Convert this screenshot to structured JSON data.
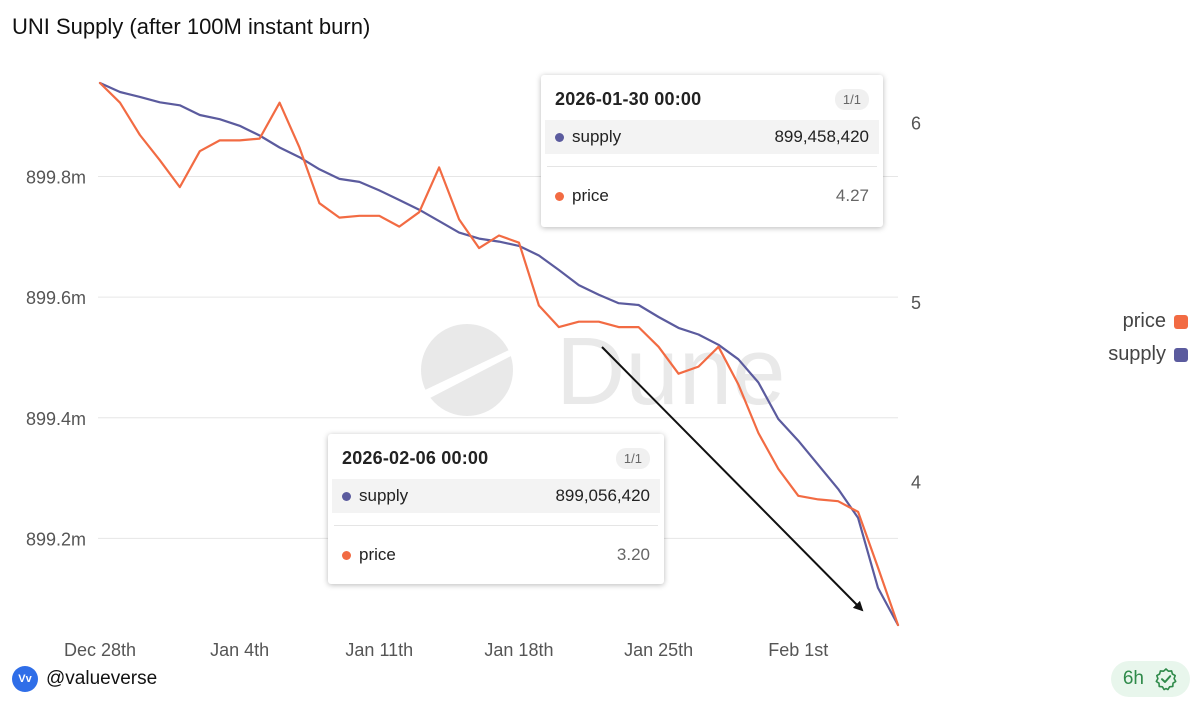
{
  "title": "UNI Supply (after 100M instant burn)",
  "chart_data": {
    "type": "line",
    "title": "UNI Supply (after 100M instant burn)",
    "x_ticks": [
      "Dec 28th",
      "Jan 4th",
      "Jan 11th",
      "Jan 18th",
      "Jan 25th",
      "Feb 1st"
    ],
    "y_left_ticks": [
      "899.8m",
      "899.6m",
      "899.4m",
      "899.2m"
    ],
    "y_left_tick_values": [
      899800000,
      899600000,
      899400000,
      899200000
    ],
    "y_left_range": [
      899056420,
      899955000
    ],
    "y_right_ticks": [
      "6",
      "5",
      "4"
    ],
    "y_right_tick_values": [
      6,
      5,
      4
    ],
    "y_right_range": [
      3.2,
      6.22
    ],
    "legend": "right",
    "grid": true,
    "x_dates": [
      "2025-12-28",
      "2025-12-29",
      "2025-12-30",
      "2025-12-31",
      "2026-01-01",
      "2026-01-02",
      "2026-01-03",
      "2026-01-04",
      "2026-01-05",
      "2026-01-06",
      "2026-01-07",
      "2026-01-08",
      "2026-01-09",
      "2026-01-10",
      "2026-01-11",
      "2026-01-12",
      "2026-01-13",
      "2026-01-14",
      "2026-01-15",
      "2026-01-16",
      "2026-01-17",
      "2026-01-18",
      "2026-01-19",
      "2026-01-20",
      "2026-01-21",
      "2026-01-22",
      "2026-01-23",
      "2026-01-24",
      "2026-01-25",
      "2026-01-26",
      "2026-01-27",
      "2026-01-28",
      "2026-01-29",
      "2026-01-30",
      "2026-01-31",
      "2026-02-01",
      "2026-02-02",
      "2026-02-03",
      "2026-02-04",
      "2026-02-05",
      "2026-02-06"
    ],
    "series": [
      {
        "name": "supply",
        "color": "#5b5b9e",
        "axis": "left",
        "values": [
          899955000,
          899940000,
          899932000,
          899923000,
          899918000,
          899902000,
          899895000,
          899884000,
          899868000,
          899848000,
          899832000,
          899812000,
          899796000,
          899791000,
          899777000,
          899761000,
          899745000,
          899726000,
          899707000,
          899697000,
          899692000,
          899685000,
          899669000,
          899645000,
          899620000,
          899604000,
          899590000,
          899587000,
          899567000,
          899549000,
          899538000,
          899521000,
          899497000,
          899458420,
          899398000,
          899362000,
          899322000,
          899282000,
          899234000,
          899118000,
          899056420
        ]
      },
      {
        "name": "price",
        "color": "#f26b43",
        "axis": "right",
        "values": [
          6.22,
          6.11,
          5.93,
          5.79,
          5.64,
          5.84,
          5.9,
          5.9,
          5.91,
          6.11,
          5.86,
          5.55,
          5.47,
          5.48,
          5.48,
          5.42,
          5.5,
          5.75,
          5.46,
          5.3,
          5.37,
          5.33,
          4.98,
          4.86,
          4.89,
          4.89,
          4.86,
          4.86,
          4.75,
          4.6,
          4.64,
          4.75,
          4.54,
          4.27,
          4.07,
          3.92,
          3.9,
          3.89,
          3.83,
          3.52,
          3.2
        ]
      }
    ]
  },
  "tooltips": [
    {
      "date": "2026-01-30 00:00",
      "badge": "1/1",
      "supply_label": "supply",
      "supply_value": "899,458,420",
      "price_label": "price",
      "price_value": "4.27"
    },
    {
      "date": "2026-02-06 00:00",
      "badge": "1/1",
      "supply_label": "supply",
      "supply_value": "899,056,420",
      "price_label": "price",
      "price_value": "3.20"
    }
  ],
  "legend": [
    {
      "label": "price",
      "color": "#f26b43"
    },
    {
      "label": "supply",
      "color": "#5b5b9e"
    }
  ],
  "watermark": "Dune",
  "footer": {
    "username": "@valueverse",
    "logo_text": "Vv",
    "refresh_label": "6h"
  },
  "colors": {
    "grid": "#e6e6e6",
    "axis_text": "#555555",
    "watermark": "#e9e9e9",
    "arrow": "#111111"
  }
}
